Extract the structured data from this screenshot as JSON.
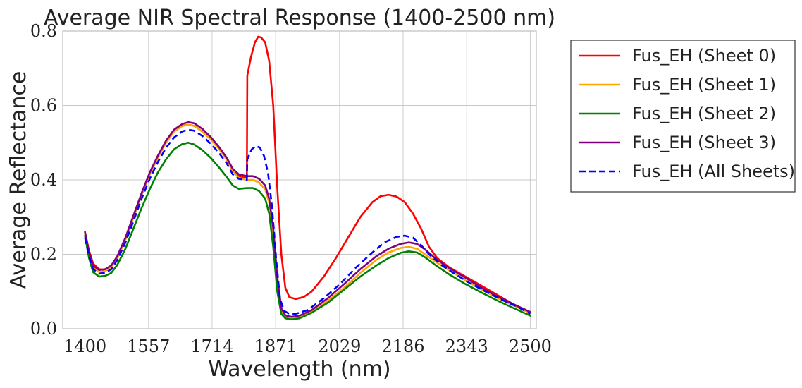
{
  "chart_data": {
    "type": "line",
    "title": "Average NIR Spectral Response (1400-2500 nm)",
    "xlabel": "Wavelength (nm)",
    "ylabel": "Average Reflectance",
    "xlim": [
      1345,
      2515
    ],
    "ylim": [
      0.0,
      0.8
    ],
    "x_ticks": [
      1400,
      1557,
      1714,
      1871,
      2029,
      2186,
      2343,
      2500
    ],
    "x_tick_labels": [
      "1400",
      "1557",
      "1714",
      "1871",
      "2029",
      "2186",
      "2343",
      "2500"
    ],
    "y_ticks": [
      0.0,
      0.2,
      0.4,
      0.6,
      0.8
    ],
    "y_tick_labels": [
      "0.0",
      "0.2",
      "0.4",
      "0.6",
      "0.8"
    ],
    "grid": true,
    "legend_position": "outside-right",
    "series": [
      {
        "name": "Fus_EH (Sheet 0)",
        "color": "#ff0000",
        "dash": "solid",
        "points": [
          [
            1400,
            0.26
          ],
          [
            1410,
            0.21
          ],
          [
            1420,
            0.175
          ],
          [
            1435,
            0.16
          ],
          [
            1450,
            0.158
          ],
          [
            1465,
            0.166
          ],
          [
            1480,
            0.19
          ],
          [
            1500,
            0.24
          ],
          [
            1520,
            0.3
          ],
          [
            1540,
            0.36
          ],
          [
            1560,
            0.415
          ],
          [
            1580,
            0.46
          ],
          [
            1600,
            0.5
          ],
          [
            1620,
            0.53
          ],
          [
            1640,
            0.545
          ],
          [
            1655,
            0.548
          ],
          [
            1670,
            0.545
          ],
          [
            1690,
            0.53
          ],
          [
            1710,
            0.51
          ],
          [
            1730,
            0.485
          ],
          [
            1750,
            0.455
          ],
          [
            1765,
            0.425
          ],
          [
            1780,
            0.41
          ],
          [
            1795,
            0.407
          ],
          [
            1800,
            0.406
          ],
          [
            1801,
            0.68
          ],
          [
            1810,
            0.73
          ],
          [
            1820,
            0.77
          ],
          [
            1828,
            0.785
          ],
          [
            1835,
            0.783
          ],
          [
            1845,
            0.77
          ],
          [
            1855,
            0.72
          ],
          [
            1865,
            0.6
          ],
          [
            1875,
            0.38
          ],
          [
            1885,
            0.2
          ],
          [
            1895,
            0.11
          ],
          [
            1905,
            0.085
          ],
          [
            1920,
            0.08
          ],
          [
            1940,
            0.085
          ],
          [
            1960,
            0.1
          ],
          [
            1990,
            0.14
          ],
          [
            2020,
            0.19
          ],
          [
            2050,
            0.245
          ],
          [
            2080,
            0.3
          ],
          [
            2110,
            0.34
          ],
          [
            2130,
            0.356
          ],
          [
            2150,
            0.36
          ],
          [
            2170,
            0.355
          ],
          [
            2190,
            0.34
          ],
          [
            2210,
            0.31
          ],
          [
            2230,
            0.27
          ],
          [
            2250,
            0.22
          ],
          [
            2270,
            0.19
          ],
          [
            2300,
            0.165
          ],
          [
            2340,
            0.14
          ],
          [
            2380,
            0.115
          ],
          [
            2420,
            0.09
          ],
          [
            2460,
            0.065
          ],
          [
            2500,
            0.045
          ]
        ]
      },
      {
        "name": "Fus_EH (Sheet 1)",
        "color": "#ffa500",
        "dash": "solid",
        "points": [
          [
            1400,
            0.255
          ],
          [
            1410,
            0.2
          ],
          [
            1420,
            0.165
          ],
          [
            1435,
            0.152
          ],
          [
            1450,
            0.155
          ],
          [
            1465,
            0.165
          ],
          [
            1480,
            0.19
          ],
          [
            1500,
            0.24
          ],
          [
            1520,
            0.3
          ],
          [
            1540,
            0.36
          ],
          [
            1560,
            0.415
          ],
          [
            1580,
            0.46
          ],
          [
            1600,
            0.5
          ],
          [
            1620,
            0.53
          ],
          [
            1640,
            0.545
          ],
          [
            1655,
            0.548
          ],
          [
            1670,
            0.545
          ],
          [
            1690,
            0.53
          ],
          [
            1710,
            0.51
          ],
          [
            1730,
            0.485
          ],
          [
            1750,
            0.455
          ],
          [
            1765,
            0.425
          ],
          [
            1780,
            0.405
          ],
          [
            1800,
            0.4
          ],
          [
            1815,
            0.4
          ],
          [
            1830,
            0.393
          ],
          [
            1845,
            0.375
          ],
          [
            1855,
            0.34
          ],
          [
            1865,
            0.26
          ],
          [
            1875,
            0.13
          ],
          [
            1885,
            0.05
          ],
          [
            1895,
            0.032
          ],
          [
            1910,
            0.028
          ],
          [
            1930,
            0.03
          ],
          [
            1960,
            0.045
          ],
          [
            2000,
            0.075
          ],
          [
            2040,
            0.11
          ],
          [
            2080,
            0.15
          ],
          [
            2120,
            0.185
          ],
          [
            2150,
            0.205
          ],
          [
            2180,
            0.217
          ],
          [
            2200,
            0.22
          ],
          [
            2220,
            0.215
          ],
          [
            2240,
            0.2
          ],
          [
            2270,
            0.177
          ],
          [
            2300,
            0.157
          ],
          [
            2340,
            0.13
          ],
          [
            2380,
            0.105
          ],
          [
            2420,
            0.082
          ],
          [
            2460,
            0.062
          ],
          [
            2500,
            0.042
          ]
        ]
      },
      {
        "name": "Fus_EH (Sheet 2)",
        "color": "#008000",
        "dash": "solid",
        "points": [
          [
            1400,
            0.25
          ],
          [
            1410,
            0.19
          ],
          [
            1420,
            0.152
          ],
          [
            1435,
            0.14
          ],
          [
            1450,
            0.142
          ],
          [
            1465,
            0.15
          ],
          [
            1480,
            0.172
          ],
          [
            1500,
            0.215
          ],
          [
            1520,
            0.27
          ],
          [
            1540,
            0.325
          ],
          [
            1560,
            0.375
          ],
          [
            1580,
            0.42
          ],
          [
            1600,
            0.455
          ],
          [
            1620,
            0.482
          ],
          [
            1640,
            0.496
          ],
          [
            1655,
            0.5
          ],
          [
            1670,
            0.495
          ],
          [
            1690,
            0.48
          ],
          [
            1710,
            0.46
          ],
          [
            1730,
            0.435
          ],
          [
            1750,
            0.408
          ],
          [
            1765,
            0.385
          ],
          [
            1780,
            0.376
          ],
          [
            1800,
            0.378
          ],
          [
            1815,
            0.378
          ],
          [
            1830,
            0.37
          ],
          [
            1845,
            0.35
          ],
          [
            1855,
            0.31
          ],
          [
            1865,
            0.22
          ],
          [
            1875,
            0.1
          ],
          [
            1885,
            0.04
          ],
          [
            1895,
            0.028
          ],
          [
            1910,
            0.025
          ],
          [
            1930,
            0.028
          ],
          [
            1960,
            0.043
          ],
          [
            2000,
            0.07
          ],
          [
            2040,
            0.105
          ],
          [
            2080,
            0.14
          ],
          [
            2120,
            0.17
          ],
          [
            2150,
            0.19
          ],
          [
            2180,
            0.204
          ],
          [
            2200,
            0.208
          ],
          [
            2220,
            0.205
          ],
          [
            2240,
            0.192
          ],
          [
            2270,
            0.168
          ],
          [
            2300,
            0.146
          ],
          [
            2340,
            0.12
          ],
          [
            2380,
            0.097
          ],
          [
            2420,
            0.075
          ],
          [
            2460,
            0.055
          ],
          [
            2500,
            0.035
          ]
        ]
      },
      {
        "name": "Fus_EH (Sheet 3)",
        "color": "#800080",
        "dash": "solid",
        "points": [
          [
            1400,
            0.26
          ],
          [
            1410,
            0.205
          ],
          [
            1420,
            0.17
          ],
          [
            1435,
            0.158
          ],
          [
            1450,
            0.16
          ],
          [
            1465,
            0.17
          ],
          [
            1480,
            0.195
          ],
          [
            1500,
            0.245
          ],
          [
            1520,
            0.305
          ],
          [
            1540,
            0.365
          ],
          [
            1560,
            0.42
          ],
          [
            1580,
            0.465
          ],
          [
            1600,
            0.505
          ],
          [
            1620,
            0.535
          ],
          [
            1640,
            0.55
          ],
          [
            1655,
            0.555
          ],
          [
            1670,
            0.552
          ],
          [
            1690,
            0.537
          ],
          [
            1710,
            0.516
          ],
          [
            1730,
            0.49
          ],
          [
            1750,
            0.46
          ],
          [
            1765,
            0.43
          ],
          [
            1780,
            0.415
          ],
          [
            1800,
            0.41
          ],
          [
            1815,
            0.41
          ],
          [
            1830,
            0.403
          ],
          [
            1845,
            0.385
          ],
          [
            1855,
            0.35
          ],
          [
            1865,
            0.27
          ],
          [
            1875,
            0.14
          ],
          [
            1885,
            0.055
          ],
          [
            1895,
            0.036
          ],
          [
            1910,
            0.032
          ],
          [
            1930,
            0.035
          ],
          [
            1960,
            0.05
          ],
          [
            2000,
            0.082
          ],
          [
            2040,
            0.12
          ],
          [
            2080,
            0.16
          ],
          [
            2120,
            0.195
          ],
          [
            2150,
            0.215
          ],
          [
            2180,
            0.228
          ],
          [
            2200,
            0.232
          ],
          [
            2220,
            0.228
          ],
          [
            2240,
            0.213
          ],
          [
            2270,
            0.185
          ],
          [
            2300,
            0.163
          ],
          [
            2340,
            0.137
          ],
          [
            2380,
            0.11
          ],
          [
            2420,
            0.086
          ],
          [
            2460,
            0.065
          ],
          [
            2500,
            0.045
          ]
        ]
      },
      {
        "name": "Fus_EH (All Sheets)",
        "color": "#0000ff",
        "dash": "dashed",
        "points": [
          [
            1400,
            0.245
          ],
          [
            1410,
            0.195
          ],
          [
            1420,
            0.16
          ],
          [
            1435,
            0.148
          ],
          [
            1450,
            0.15
          ],
          [
            1465,
            0.16
          ],
          [
            1480,
            0.185
          ],
          [
            1500,
            0.232
          ],
          [
            1520,
            0.29
          ],
          [
            1540,
            0.35
          ],
          [
            1560,
            0.403
          ],
          [
            1580,
            0.448
          ],
          [
            1600,
            0.486
          ],
          [
            1620,
            0.514
          ],
          [
            1640,
            0.53
          ],
          [
            1655,
            0.535
          ],
          [
            1670,
            0.532
          ],
          [
            1690,
            0.518
          ],
          [
            1710,
            0.498
          ],
          [
            1730,
            0.474
          ],
          [
            1750,
            0.445
          ],
          [
            1765,
            0.415
          ],
          [
            1780,
            0.403
          ],
          [
            1800,
            0.4
          ],
          [
            1801,
            0.455
          ],
          [
            1812,
            0.482
          ],
          [
            1822,
            0.491
          ],
          [
            1832,
            0.487
          ],
          [
            1842,
            0.465
          ],
          [
            1852,
            0.42
          ],
          [
            1862,
            0.33
          ],
          [
            1872,
            0.19
          ],
          [
            1882,
            0.08
          ],
          [
            1892,
            0.048
          ],
          [
            1905,
            0.04
          ],
          [
            1920,
            0.04
          ],
          [
            1950,
            0.05
          ],
          [
            1990,
            0.082
          ],
          [
            2030,
            0.12
          ],
          [
            2070,
            0.165
          ],
          [
            2110,
            0.205
          ],
          [
            2140,
            0.232
          ],
          [
            2170,
            0.247
          ],
          [
            2190,
            0.25
          ],
          [
            2210,
            0.245
          ],
          [
            2230,
            0.225
          ],
          [
            2250,
            0.2
          ],
          [
            2280,
            0.172
          ],
          [
            2310,
            0.15
          ],
          [
            2350,
            0.123
          ],
          [
            2390,
            0.1
          ],
          [
            2430,
            0.078
          ],
          [
            2470,
            0.058
          ],
          [
            2500,
            0.04
          ]
        ]
      }
    ]
  }
}
